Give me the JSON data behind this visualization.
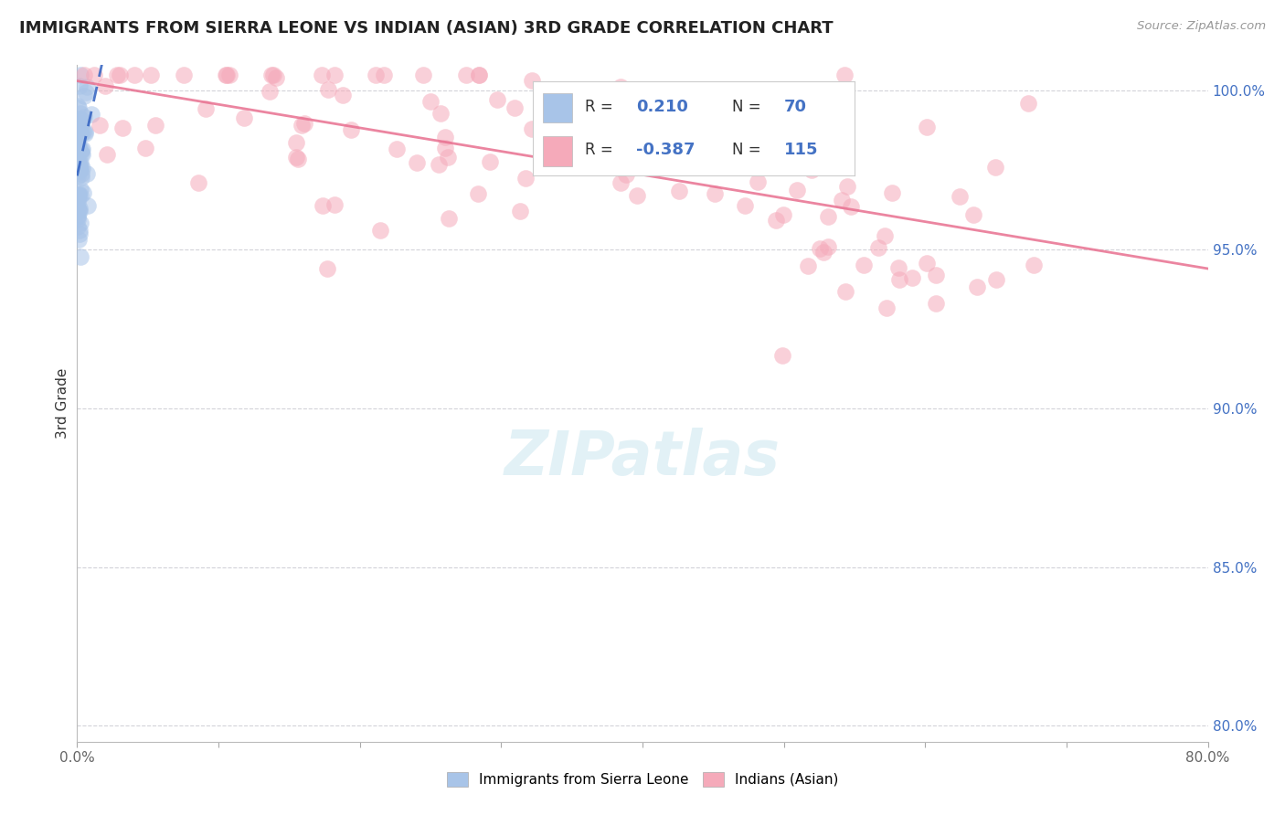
{
  "title": "IMMIGRANTS FROM SIERRA LEONE VS INDIAN (ASIAN) 3RD GRADE CORRELATION CHART",
  "source": "Source: ZipAtlas.com",
  "ylabel": "3rd Grade",
  "xlim": [
    0.0,
    0.8
  ],
  "ylim": [
    0.795,
    1.008
  ],
  "y_ticks_right": [
    0.8,
    0.85,
    0.9,
    0.95,
    1.0
  ],
  "y_tick_labels_right": [
    "80.0%",
    "85.0%",
    "90.0%",
    "95.0%",
    "100.0%"
  ],
  "legend_R1": "0.210",
  "legend_N1": "70",
  "legend_R2": "-0.387",
  "legend_N2": "115",
  "blue_color": "#a8c4e8",
  "pink_color": "#f5aaba",
  "blue_line_color": "#3060c0",
  "pink_line_color": "#e87090",
  "background_color": "#ffffff",
  "grid_color": "#c8c8d0",
  "title_color": "#222222",
  "source_color": "#999999",
  "ylabel_color": "#333333",
  "right_tick_color": "#4472c4",
  "bottom_tick_color": "#666666"
}
